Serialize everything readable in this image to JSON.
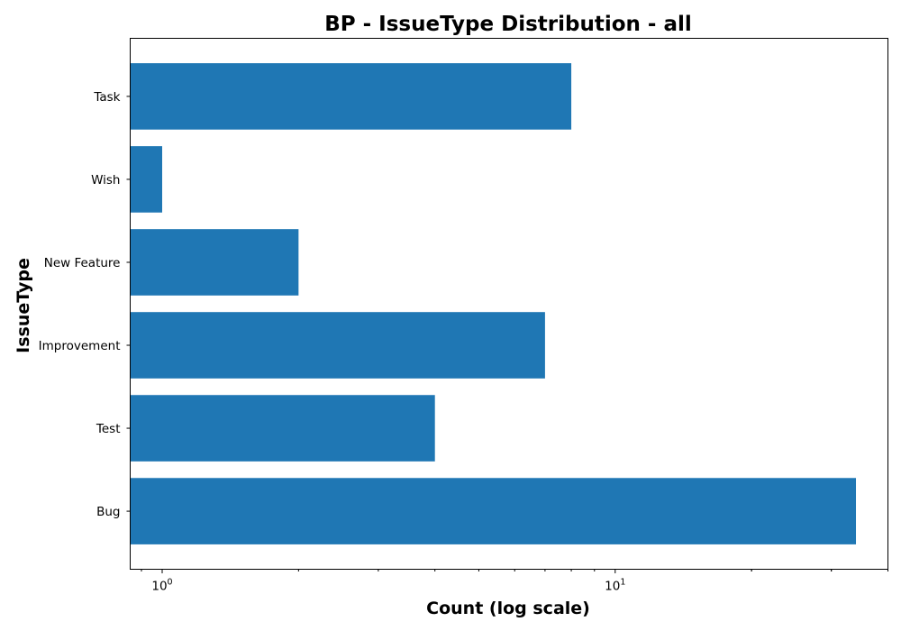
{
  "chart_data": {
    "type": "bar",
    "orientation": "horizontal",
    "title": "BP - IssueType Distribution - all",
    "xlabel": "Count (log scale)",
    "ylabel": "IssueType",
    "xscale": "log",
    "xlim": [
      0.85,
      40
    ],
    "categories": [
      "Bug",
      "Test",
      "Improvement",
      "New Feature",
      "Wish",
      "Task"
    ],
    "values": [
      34,
      4,
      7,
      2,
      1,
      8
    ],
    "x_major_ticks": [
      {
        "base": "10",
        "exp": "0",
        "value": 1
      },
      {
        "base": "10",
        "exp": "1",
        "value": 10
      }
    ],
    "bar_color": "#1f77b4",
    "grid": false,
    "legend": "none"
  }
}
